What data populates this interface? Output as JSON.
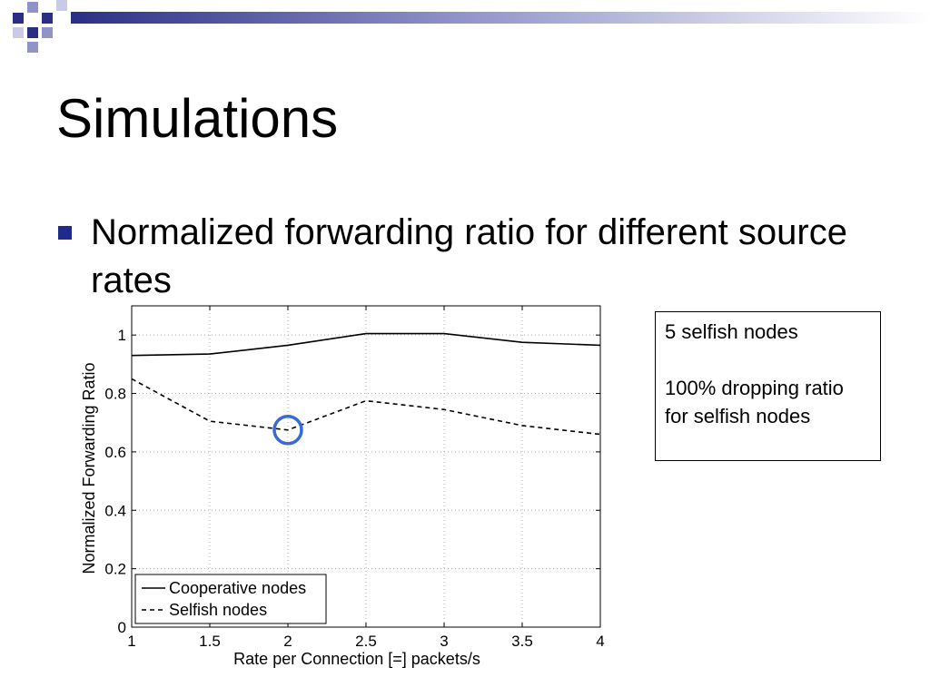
{
  "slide": {
    "title": "Simulations",
    "bullet_text": "Normalized forwarding ratio for different source rates"
  },
  "note": {
    "line1": "5 selfish nodes",
    "line2": "100% dropping ratio for selfish nodes"
  },
  "colors": {
    "bullet": "#1f2a8c",
    "highlight_circle": "#3a6ad9",
    "deco_dark": "#2b2f84",
    "deco_mid": "#8f93c8",
    "deco_light": "#c9cbe6"
  },
  "chart_data": {
    "type": "line",
    "title": "",
    "xlabel": "Rate per Connection [=] packets/s",
    "ylabel": "Normalized Forwarding Ratio",
    "x": [
      1,
      1.5,
      2,
      2.5,
      3,
      3.5,
      4
    ],
    "xlim": [
      1,
      4
    ],
    "ylim": [
      0,
      1.1
    ],
    "xticks": [
      1,
      1.5,
      2,
      2.5,
      3,
      3.5,
      4
    ],
    "xtick_labels": [
      "1",
      "1.5",
      "2",
      "2.5",
      "3",
      "3.5",
      "4"
    ],
    "yticks": [
      0,
      0.2,
      0.4,
      0.6,
      0.8,
      1
    ],
    "ytick_labels": [
      "0",
      "0.2",
      "0.4",
      "0.6",
      "0.8",
      "1"
    ],
    "grid": true,
    "legend_position": "bottom-left",
    "series": [
      {
        "name": "Cooperative nodes",
        "style": "solid",
        "values": [
          0.93,
          0.935,
          0.965,
          1.005,
          1.005,
          0.975,
          0.965
        ]
      },
      {
        "name": "Selfish nodes",
        "style": "dashed",
        "values": [
          0.85,
          0.705,
          0.675,
          0.775,
          0.745,
          0.69,
          0.66
        ]
      }
    ],
    "annotation": {
      "shape": "circle",
      "x": 2,
      "y": 0.675
    }
  }
}
